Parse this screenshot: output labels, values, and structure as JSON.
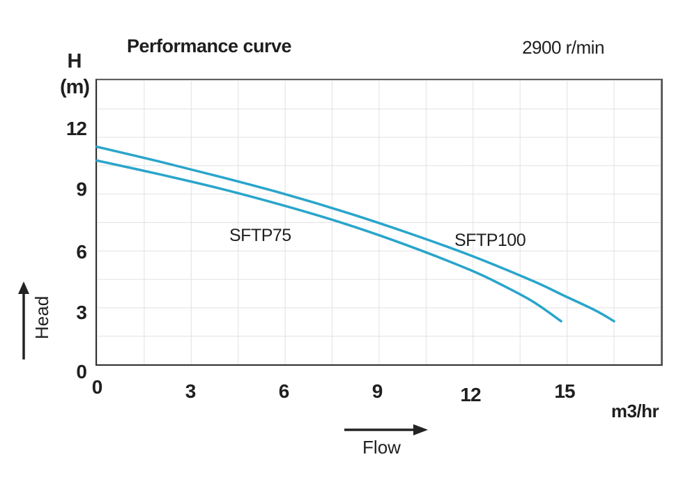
{
  "title": "Performance curve",
  "annotation": "2900 r/min",
  "y_axis": {
    "symbol": "H",
    "unit": "(m)",
    "arrow_label": "Head"
  },
  "x_axis": {
    "unit_label": "m3/hr",
    "arrow_label": "Flow"
  },
  "chart_data": {
    "type": "line",
    "title": "Performance curve",
    "subtitle": "2900 r/min",
    "xlabel": "Flow",
    "x_unit": "m3/hr",
    "ylabel": "Head",
    "y_unit": "H (m)",
    "xlim": [
      0,
      18.1
    ],
    "ylim": [
      0,
      14.5
    ],
    "x_ticks": [
      "0",
      "3",
      "6",
      "9",
      "12",
      "15"
    ],
    "x_tick_values": [
      0,
      3,
      6,
      9,
      12,
      15
    ],
    "y_ticks": [
      "12",
      "9",
      "6",
      "3",
      "0"
    ],
    "y_tick_values": [
      12,
      9,
      6,
      3,
      0
    ],
    "grid": true,
    "legend": "inline-labels",
    "line_color": "#29A5CB",
    "series": [
      {
        "name": "SFTP75",
        "x": [
          0,
          2,
          4,
          6,
          8,
          10,
          12,
          13,
          14,
          14.9
        ],
        "y": [
          10.4,
          9.7,
          8.95,
          8.1,
          7.15,
          6.05,
          4.8,
          4.05,
          3.2,
          2.2
        ]
      },
      {
        "name": "SFTP100",
        "x": [
          0,
          2,
          4,
          6,
          8,
          10,
          12,
          14,
          15,
          16,
          16.6
        ],
        "y": [
          11.1,
          10.35,
          9.55,
          8.7,
          7.75,
          6.7,
          5.55,
          4.25,
          3.5,
          2.75,
          2.2
        ]
      }
    ]
  }
}
